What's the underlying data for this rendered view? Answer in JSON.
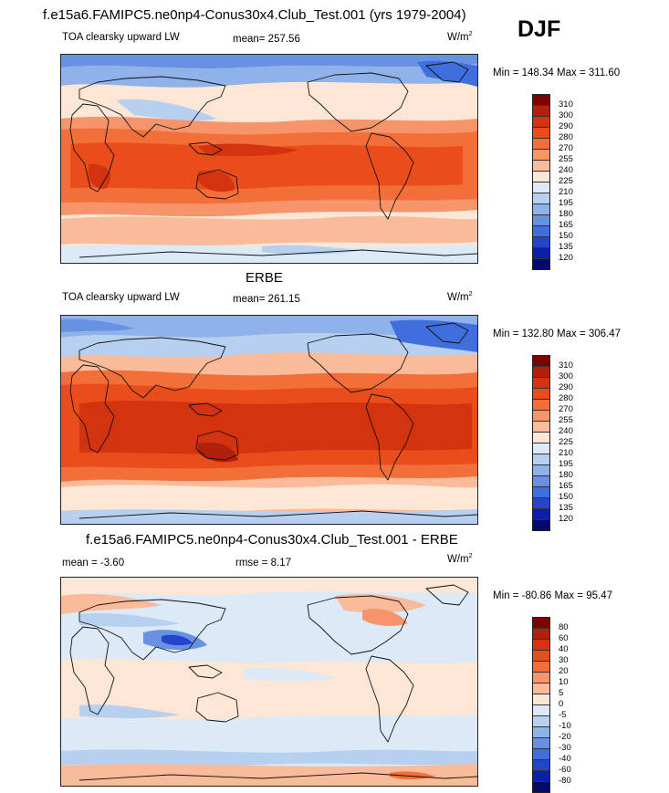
{
  "header": {
    "title": "f.e15a6.FAMIPC5.ne0np4-Conus30x4.Club_Test.001 (yrs 1979-2004)",
    "season": "DJF"
  },
  "panels": [
    {
      "id": "model",
      "variable": "TOA clearsky upward LW",
      "mean_text": "mean= 257.56",
      "unit_base": "W/m",
      "unit_exp": "2",
      "minmax_text": "Min = 148.34 Max = 311.60",
      "colorbar": {
        "labels": [
          "310",
          "300",
          "290",
          "280",
          "270",
          "255",
          "240",
          "225",
          "210",
          "195",
          "180",
          "165",
          "150",
          "135",
          "120"
        ],
        "colors": [
          "#7a0403",
          "#b0200a",
          "#d3340f",
          "#e84d1b",
          "#f26f3a",
          "#f6946a",
          "#f9bb9a",
          "#fce6d6",
          "#dce9f7",
          "#b7d0f0",
          "#8fb2ea",
          "#6792e4",
          "#3f6fdd",
          "#2245cc",
          "#0b1fa8",
          "#020a6e"
        ]
      }
    },
    {
      "id": "obs",
      "heading": "ERBE",
      "variable": "TOA clearsky upward LW",
      "mean_text": "mean= 261.15",
      "unit_base": "W/m",
      "unit_exp": "2",
      "minmax_text": "Min = 132.80 Max = 306.47",
      "colorbar": {
        "labels": [
          "310",
          "300",
          "290",
          "280",
          "270",
          "255",
          "240",
          "225",
          "210",
          "195",
          "180",
          "165",
          "150",
          "135",
          "120"
        ],
        "colors": [
          "#7a0403",
          "#b0200a",
          "#d3340f",
          "#e84d1b",
          "#f26f3a",
          "#f6946a",
          "#f9bb9a",
          "#fce6d6",
          "#dce9f7",
          "#b7d0f0",
          "#8fb2ea",
          "#6792e4",
          "#3f6fdd",
          "#2245cc",
          "#0b1fa8",
          "#020a6e"
        ]
      }
    },
    {
      "id": "diff",
      "heading": "f.e15a6.FAMIPC5.ne0np4-Conus30x4.Club_Test.001 - ERBE",
      "mean_text": "mean =  -3.60",
      "rmse_text": "rmse =   8.17",
      "unit_base": "W/m",
      "unit_exp": "2",
      "minmax_text": "Min = -80.86 Max =  95.47",
      "colorbar": {
        "labels": [
          "80",
          "60",
          "40",
          "30",
          "20",
          "10",
          "5",
          "0",
          "-5",
          "-10",
          "-20",
          "-30",
          "-40",
          "-60",
          "-80"
        ],
        "colors": [
          "#7a0403",
          "#b0200a",
          "#d3340f",
          "#e84d1b",
          "#f26f3a",
          "#f6946a",
          "#f9bb9a",
          "#fce6d6",
          "#dce9f7",
          "#b7d0f0",
          "#8fb2ea",
          "#6792e4",
          "#3f6fdd",
          "#2245cc",
          "#0b1fa8",
          "#020a6e"
        ]
      }
    }
  ]
}
